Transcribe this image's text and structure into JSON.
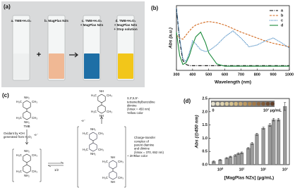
{
  "photo_panel": {
    "label": "(a)",
    "plus": "+",
    "cuvettes": [
      {
        "lines": [
          "a. TMB+H₂O₂"
        ],
        "color": "#eef0f0"
      },
      {
        "lines": [
          "b. MagPlas NZs"
        ],
        "color": "#f0b894"
      },
      {
        "lines": [
          "c. TMB+H₂O₂",
          "+ MagPlas NZs"
        ],
        "color": "#1e6fa6"
      },
      {
        "lines": [
          "d. TMB+H₂O₂",
          "+ MagPlas NZs",
          "+ Stop solution"
        ],
        "color": "#f2c61a"
      }
    ]
  },
  "scheme_panel": {
    "label": "(c)",
    "tmb": "TMB",
    "oxidant": [
      "Oxidant by •OH",
      "generated from H₂O₂"
    ],
    "minus_e": "-e⁻",
    "half": "1/2",
    "plus_h": "+ 2H⁺",
    "groups": {
      "methyl_left": "H₃C",
      "methyl_right": "CH₃",
      "amine": "NH₂",
      "imine": "NH"
    },
    "diimine": [
      "3,3',5,5'-",
      "tetramethylbenzidine",
      "diimine",
      "(λmax = 450 nm)",
      "Yellow color"
    ],
    "complex": [
      "Charge-transfer",
      "complex of",
      "parent diamine",
      "and diimine",
      "(λmax = 370, 652 nm)",
      "Blue color"
    ]
  },
  "chart_data": [
    {
      "type": "line",
      "panel_label": "(b)",
      "x_label": "Wavelength (nm)",
      "y_label": "Abs (a.u.)",
      "x": [
        300,
        320,
        340,
        360,
        380,
        400,
        420,
        450,
        480,
        500,
        550,
        600,
        650,
        700,
        750,
        800,
        850,
        900,
        950,
        1000
      ],
      "xlim": [
        300,
        1000
      ],
      "xticks": [
        300,
        400,
        500,
        600,
        700,
        800,
        900,
        1000
      ],
      "ylim": [
        -0.05,
        1.05
      ],
      "legend": "upper right",
      "series": [
        {
          "name": "a",
          "color": "#000000",
          "values": [
            1.0,
            0.45,
            0.12,
            0.05,
            0.03,
            0.03,
            0.03,
            0.03,
            0.03,
            0.03,
            0.03,
            0.03,
            0.03,
            0.03,
            0.03,
            0.03,
            0.03,
            0.03,
            0.03,
            0.03
          ]
        },
        {
          "name": "b",
          "color": "#d2691e",
          "values": [
            0.55,
            0.5,
            0.48,
            0.55,
            0.62,
            0.68,
            0.72,
            0.75,
            0.77,
            0.78,
            0.76,
            0.72,
            0.66,
            0.6,
            0.55,
            0.5,
            0.45,
            0.41,
            0.38,
            0.35
          ]
        },
        {
          "name": "c",
          "color": "#1f6fb4",
          "values": [
            1.0,
            0.5,
            0.15,
            0.1,
            0.25,
            0.45,
            0.4,
            0.3,
            0.27,
            0.28,
            0.38,
            0.52,
            0.62,
            0.5,
            0.35,
            0.38,
            0.45,
            0.5,
            0.42,
            0.33
          ]
        },
        {
          "name": "d",
          "color": "#1a8a3a",
          "values": [
            0.6,
            0.2,
            0.05,
            0.08,
            0.2,
            0.38,
            0.52,
            0.6,
            0.42,
            0.25,
            0.06,
            0.02,
            0.02,
            0.02,
            0.02,
            0.02,
            0.02,
            0.02,
            0.02,
            0.02
          ]
        }
      ]
    },
    {
      "type": "bar",
      "panel_label": "(d)",
      "x_label": "[MagPlas NZs] (μg/mL)",
      "y_label": "Abs (@450 nm)",
      "xscale": "log",
      "color": "#9a9a9a",
      "x": [
        0.5,
        1,
        2,
        3,
        5,
        7,
        10,
        20,
        30,
        50,
        100,
        200,
        300,
        500,
        1000
      ],
      "values": [
        0.12,
        0.18,
        0.25,
        0.3,
        0.35,
        0.42,
        0.45,
        0.62,
        0.8,
        1.15,
        1.38,
        1.5,
        1.7,
        1.7,
        2.2
      ],
      "errors": [
        0.02,
        0.02,
        0.02,
        0.02,
        0.03,
        0.03,
        0.03,
        0.03,
        0.04,
        0.04,
        0.04,
        0.05,
        0.05,
        0.05,
        0.15
      ],
      "xlim": [
        0.3,
        1600
      ],
      "xticks": [
        {
          "value": 1,
          "label": "10⁰"
        },
        {
          "value": 10,
          "label": "10¹"
        },
        {
          "value": 100,
          "label": "10²"
        },
        {
          "value": 1000,
          "label": "10³"
        }
      ],
      "ylim": [
        0,
        2.5
      ],
      "yticks": [
        {
          "value": 0,
          "label": "0.0"
        },
        {
          "value": 0.5,
          "label": "0.5"
        },
        {
          "value": 1,
          "label": "1.0"
        },
        {
          "value": 1.5,
          "label": "1.5"
        },
        {
          "value": 2,
          "label": "2.0"
        },
        {
          "value": 2.5,
          "label": "2.5"
        }
      ],
      "inset": {
        "start_label": "0",
        "end_label": "10³ μg/mL",
        "well_colors": [
          "#e6e2d0",
          "#e4dcc0",
          "#e0d4b0",
          "#dccca0",
          "#d8c490",
          "#d2b880",
          "#c8a870",
          "#bc9860",
          "#b08850",
          "#a07848",
          "#906840",
          "#805a38",
          "#704c30",
          "#603e28"
        ]
      }
    }
  ]
}
